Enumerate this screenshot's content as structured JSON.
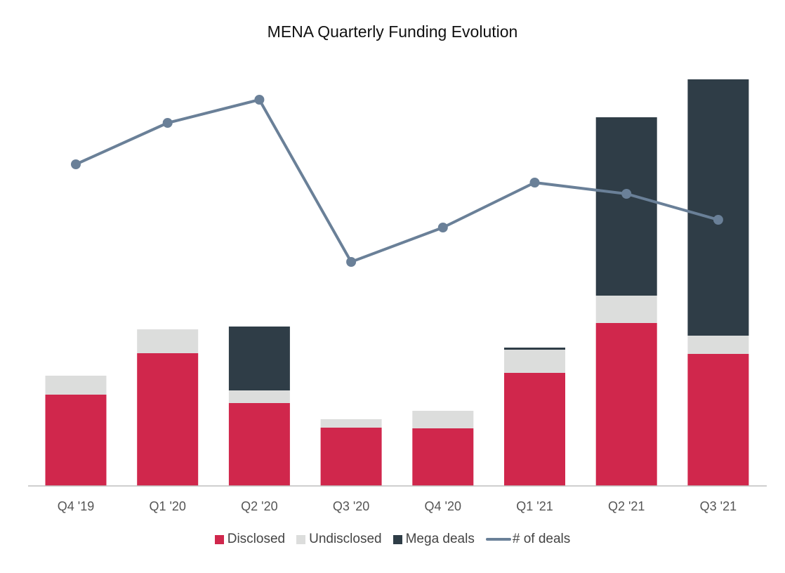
{
  "chart_data": {
    "type": "bar",
    "stacked": true,
    "title": "MENA Quarterly Funding Evolution",
    "xlabel": "",
    "ylabel": "",
    "units_note": "No axis values shown; values are relative bar heights",
    "categories": [
      "Q4 '19",
      "Q1 '20",
      "Q2 '20",
      "Q3 '20",
      "Q4 '20",
      "Q1 '21",
      "Q2 '21",
      "Q3 '21"
    ],
    "ylim": [
      0,
      580
    ],
    "series": [
      {
        "name": "Disclosed",
        "color": "#d0274c",
        "values": [
          130,
          189,
          118,
          83,
          82,
          161,
          232,
          188
        ]
      },
      {
        "name": "Undisclosed",
        "color": "#dcdddc",
        "values": [
          27,
          34,
          18,
          12,
          25,
          33,
          39,
          26
        ]
      },
      {
        "name": "Mega deals",
        "color": "#2f3d47",
        "values": [
          0,
          0,
          91,
          0,
          0,
          3,
          254,
          365
        ]
      }
    ],
    "line_series": {
      "name": "# of deals",
      "color": "#6a8098",
      "values": [
        458,
        517,
        550,
        319,
        368,
        432,
        416,
        379
      ],
      "secondary_axis": true
    },
    "grid": false,
    "legend": "bottom-center"
  }
}
